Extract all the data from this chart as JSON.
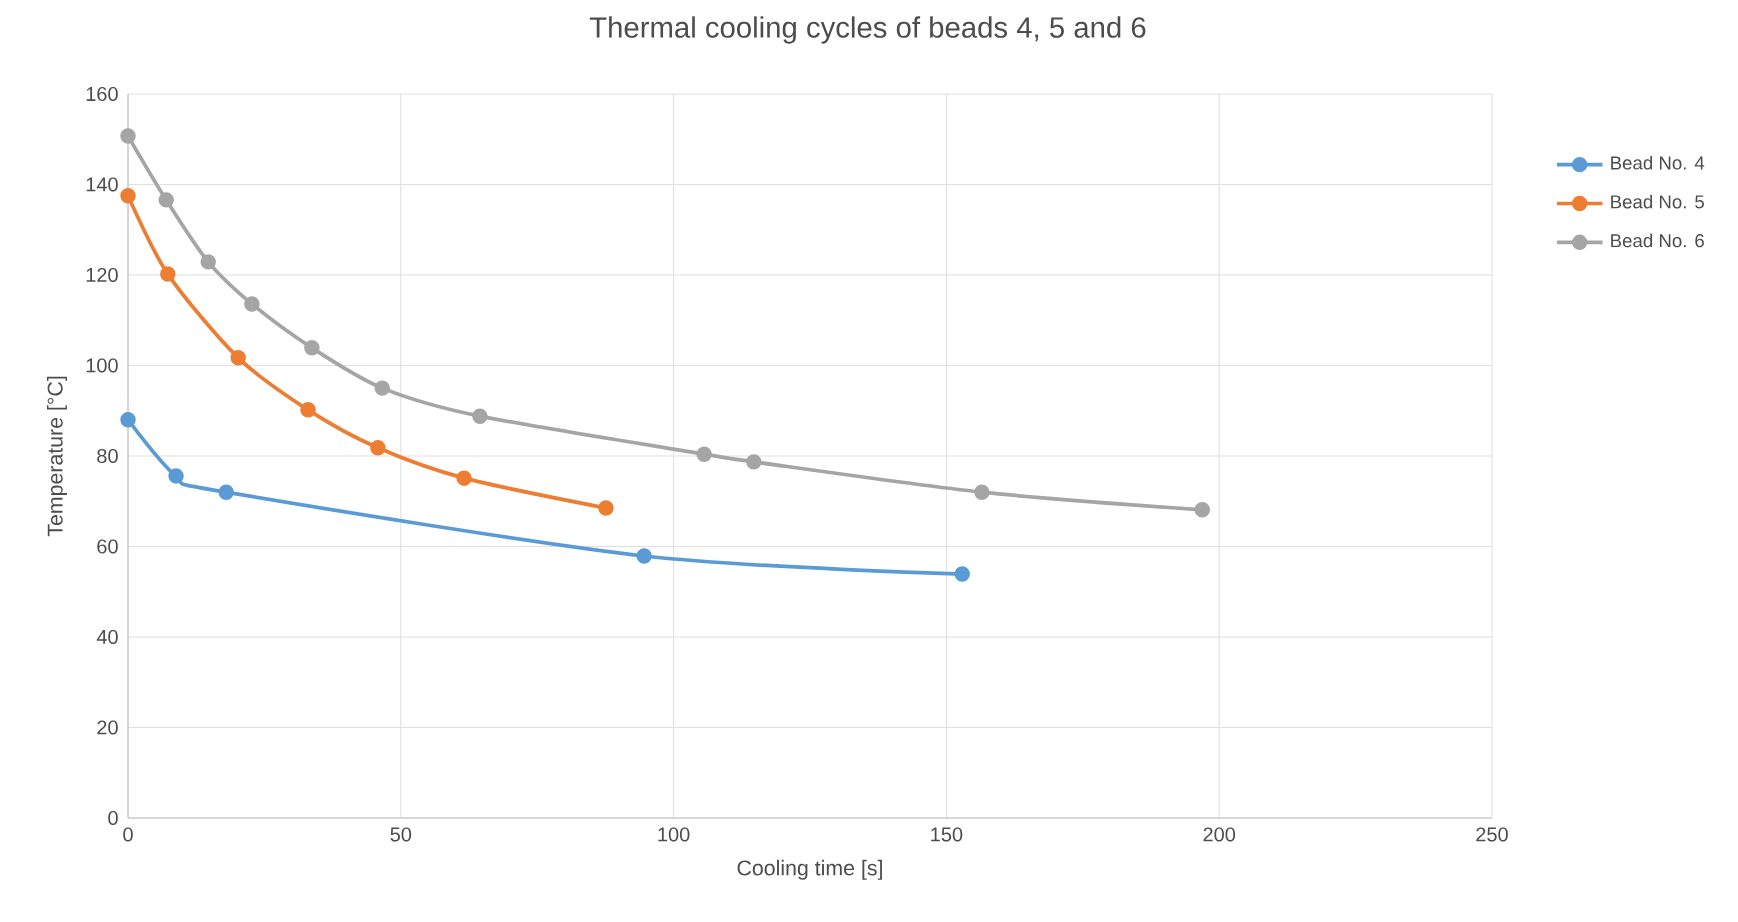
{
  "chart_data": {
    "type": "line",
    "title": "Thermal cooling cycles of beads 4, 5 and 6",
    "xlabel": "Cooling time [s]",
    "ylabel": "Temperature [°C]",
    "xlim": [
      0,
      250
    ],
    "xticks": [
      0,
      50,
      100,
      150,
      200,
      250
    ],
    "ylim": [
      0,
      160
    ],
    "yticks": [
      0,
      20,
      40,
      60,
      80,
      100,
      120,
      140,
      160
    ],
    "grid": true,
    "legend": "right",
    "marker": "circle",
    "line_style": "solid",
    "series": [
      {
        "name": "Bead No. 4",
        "color": "#5b9bd5",
        "x": [
          0,
          8.8,
          18,
          94.6,
          152.9
        ],
        "values": [
          88,
          75.6,
          72,
          57.9,
          53.9
        ]
      },
      {
        "name": "Bead No. 5",
        "color": "#ed7d31",
        "x": [
          0,
          7.3,
          20.2,
          33,
          45.8,
          61.6,
          87.6
        ],
        "values": [
          137.5,
          120.2,
          101.7,
          90.2,
          81.8,
          75.1,
          68.5
        ]
      },
      {
        "name": "Bead No. 6",
        "color": "#a5a5a5",
        "x": [
          0,
          7,
          14.7,
          22.7,
          33.7,
          46.6,
          64.5,
          105.6,
          114.7,
          156.5,
          196.9
        ],
        "values": [
          150.7,
          136.6,
          122.9,
          113.6,
          103.9,
          95,
          88.8,
          80.4,
          78.7,
          72,
          68.1
        ]
      }
    ]
  }
}
